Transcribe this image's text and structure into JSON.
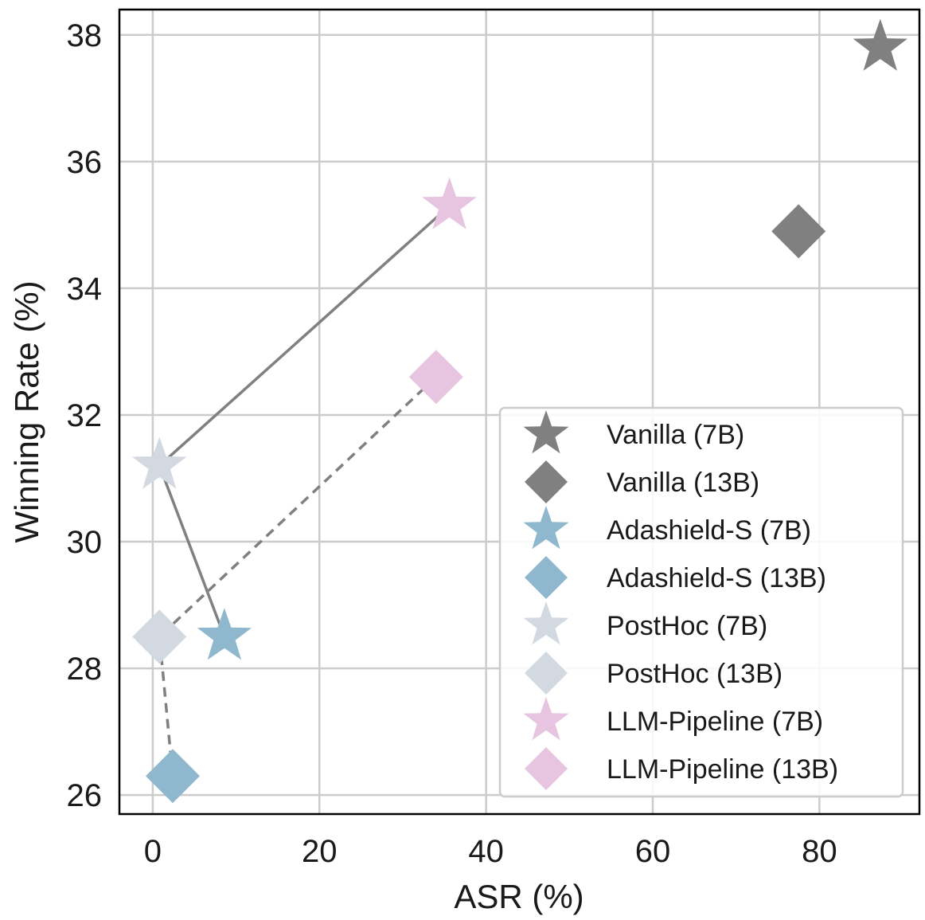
{
  "chart_data": {
    "type": "scatter",
    "title": "",
    "xlabel": "ASR (%)",
    "ylabel": "Winning Rate (%)",
    "xlim": [
      -4,
      92
    ],
    "ylim": [
      25.7,
      38.4
    ],
    "xticks": [
      0,
      20,
      40,
      60,
      80
    ],
    "yticks": [
      26,
      28,
      30,
      32,
      34,
      36,
      38
    ],
    "grid": true,
    "legend_position": "lower-right",
    "series": [
      {
        "name": "Vanilla (7B)",
        "marker": "star",
        "color": "#808080",
        "points": [
          {
            "x": 87.3,
            "y": 37.8
          }
        ]
      },
      {
        "name": "Vanilla (13B)",
        "marker": "diamond",
        "color": "#808080",
        "points": [
          {
            "x": 77.5,
            "y": 34.9
          }
        ]
      },
      {
        "name": "Adashield-S (7B)",
        "marker": "star",
        "color": "#8fb8cf",
        "points": [
          {
            "x": 8.6,
            "y": 28.5
          }
        ]
      },
      {
        "name": "Adashield-S (13B)",
        "marker": "diamond",
        "color": "#8fb8cf",
        "points": [
          {
            "x": 2.4,
            "y": 26.3
          }
        ]
      },
      {
        "name": "PostHoc (7B)",
        "marker": "star",
        "color": "#d3d9e0",
        "points": [
          {
            "x": 0.8,
            "y": 31.2
          }
        ]
      },
      {
        "name": "PostHoc (13B)",
        "marker": "diamond",
        "color": "#d3d9e0",
        "points": [
          {
            "x": 0.8,
            "y": 28.5
          }
        ]
      },
      {
        "name": "LLM-Pipeline (7B)",
        "marker": "star",
        "color": "#e7c4df",
        "points": [
          {
            "x": 35.6,
            "y": 35.3
          }
        ]
      },
      {
        "name": "LLM-Pipeline (13B)",
        "marker": "diamond",
        "color": "#e7c4df",
        "points": [
          {
            "x": 34.0,
            "y": 32.6
          }
        ]
      }
    ],
    "connector_lines": [
      {
        "style": "solid",
        "color": "#808080",
        "points": [
          {
            "x": 8.6,
            "y": 28.5
          },
          {
            "x": 0.8,
            "y": 31.2
          },
          {
            "x": 35.6,
            "y": 35.3
          }
        ]
      },
      {
        "style": "dashed",
        "color": "#808080",
        "points": [
          {
            "x": 2.4,
            "y": 26.3
          },
          {
            "x": 0.8,
            "y": 28.5
          },
          {
            "x": 34.0,
            "y": 32.6
          }
        ]
      }
    ]
  }
}
